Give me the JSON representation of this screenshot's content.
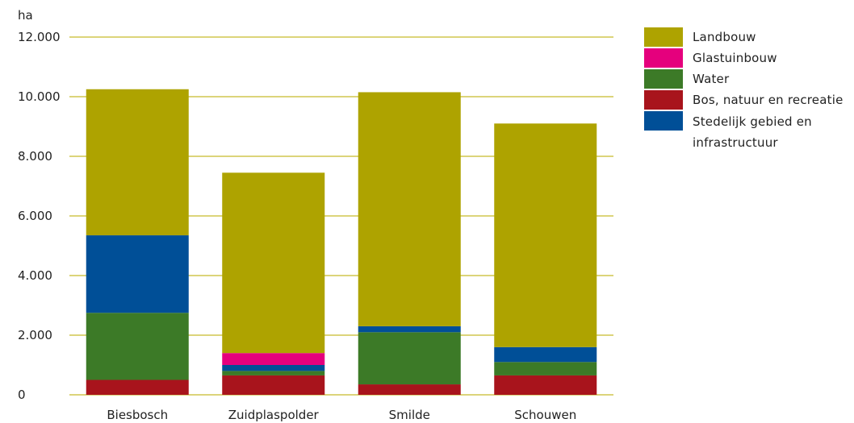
{
  "chart_data": {
    "type": "bar",
    "stacked": true,
    "unit_label": "ha",
    "categories": [
      "Biesbosch",
      "Zuidplaspolder",
      "Smilde",
      "Schouwen"
    ],
    "ylim": [
      0,
      12000
    ],
    "yticks": [
      0,
      2000,
      4000,
      6000,
      8000,
      10000,
      12000
    ],
    "ytick_labels": [
      "0",
      "2.000",
      "4.000",
      "6.000",
      "8.000",
      "10.000",
      "12.000"
    ],
    "grid": true,
    "legend_position": "right",
    "series": [
      {
        "name": "Bos, natuur en recreatie",
        "color": "#a8141c",
        "values": [
          500,
          650,
          350,
          650
        ]
      },
      {
        "name": "Water",
        "color": "#3c7a27",
        "values": [
          2250,
          150,
          1750,
          450
        ]
      },
      {
        "name": "Stedelijk gebied en infrastructuur",
        "color": "#004f97",
        "values": [
          2600,
          200,
          200,
          500
        ]
      },
      {
        "name": "Glastuinbouw",
        "color": "#e5007d",
        "values": [
          0,
          400,
          0,
          0
        ]
      },
      {
        "name": "Landbouw",
        "color": "#aea300",
        "values": [
          4900,
          6050,
          7850,
          7500
        ]
      }
    ]
  },
  "legend": {
    "items": [
      {
        "label": "Landbouw",
        "color": "#aea300"
      },
      {
        "label": "Glastuinbouw",
        "color": "#e5007d"
      },
      {
        "label": "Water",
        "color": "#3c7a27"
      },
      {
        "label": "Bos, natuur en recreatie",
        "color": "#a8141c"
      },
      {
        "label": "Stedelijk gebied en infrastructuur",
        "color": "#004f97"
      }
    ]
  }
}
